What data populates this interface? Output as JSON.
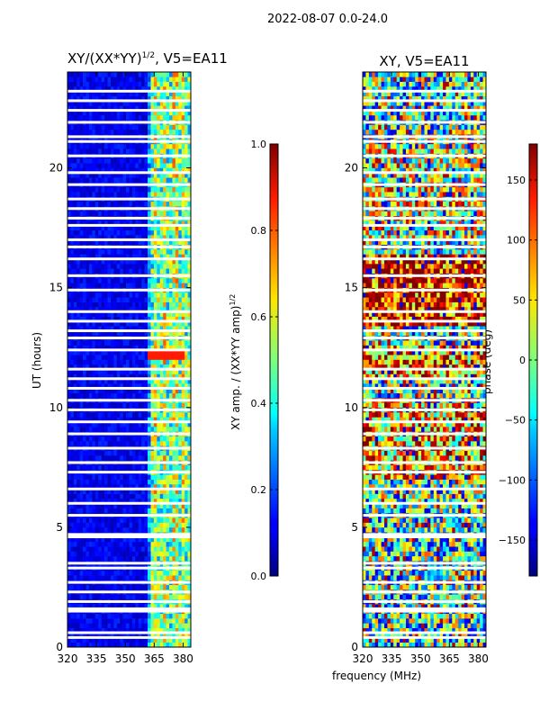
{
  "suptitle": "2022-08-07 0.0-24.0",
  "xlabel": "frequency (MHz)",
  "chart_data": [
    {
      "type": "heatmap",
      "title_main": "XY/(XX*YY)",
      "title_sup": "1/2",
      "title_tail": ", V5=EA11",
      "xlabel": "frequency (MHz)",
      "ylabel": "UT (hours)",
      "x_ticks": [
        "320",
        "335",
        "350",
        "365",
        "380"
      ],
      "x_tick_values": [
        320,
        335,
        350,
        365,
        380
      ],
      "xlim": [
        320,
        384
      ],
      "y_ticks": [
        "0",
        "5",
        "10",
        "15",
        "20"
      ],
      "y_tick_values": [
        0,
        5,
        10,
        15,
        20
      ],
      "ylim": [
        0,
        24
      ],
      "colorbar": {
        "label_main": "XY amp. / (XX*YY amp)",
        "label_sup": "1/2",
        "ticks": [
          "0.0",
          "0.2",
          "0.4",
          "0.6",
          "0.8",
          "1.0"
        ],
        "tick_values": [
          0.0,
          0.2,
          0.4,
          0.6,
          0.8,
          1.0
        ],
        "range": [
          0.0,
          1.0
        ]
      }
    },
    {
      "type": "heatmap",
      "title": "XY, V5=EA11",
      "xlabel": "frequency (MHz)",
      "x_ticks": [
        "320",
        "335",
        "350",
        "365",
        "380"
      ],
      "x_tick_values": [
        320,
        335,
        350,
        365,
        380
      ],
      "xlim": [
        320,
        384
      ],
      "y_ticks": [
        "0",
        "5",
        "10",
        "15",
        "20"
      ],
      "y_tick_values": [
        0,
        5,
        10,
        15,
        20
      ],
      "ylim": [
        0,
        24
      ],
      "colorbar": {
        "label": "phase (deg)",
        "ticks": [
          "−150",
          "−100",
          "−50",
          "0",
          "50",
          "100",
          "150"
        ],
        "tick_values": [
          -150,
          -100,
          -50,
          0,
          50,
          100,
          150
        ],
        "range": [
          -180,
          180
        ]
      }
    }
  ]
}
